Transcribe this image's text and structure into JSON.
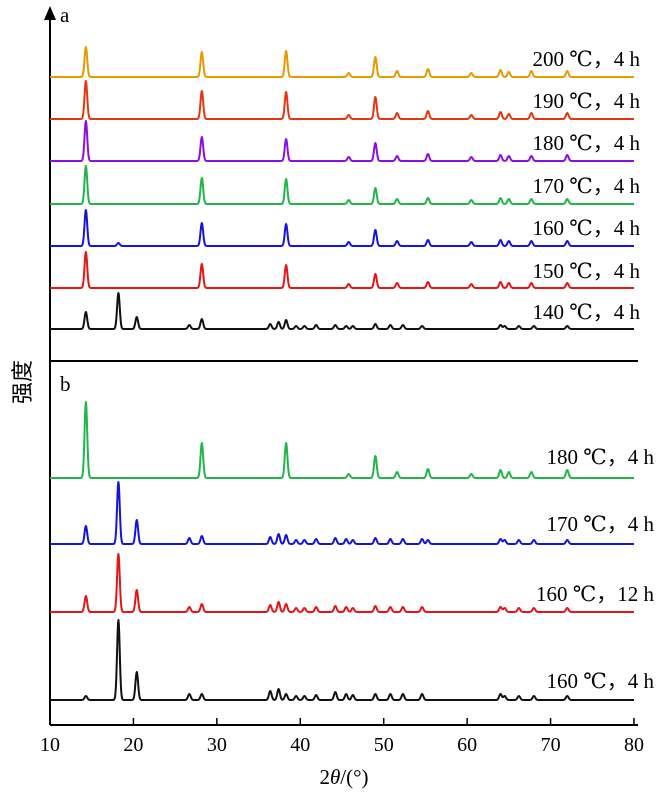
{
  "chart_data": {
    "type": "line",
    "shared_x_axis": {
      "label_prefix": "2",
      "label_var": "θ",
      "label_suffix": "/(°)",
      "ticks": [
        10,
        20,
        30,
        40,
        50,
        60,
        70,
        80
      ],
      "tick_labels": [
        "10",
        "20",
        "30",
        "40",
        "50",
        "60",
        "70",
        "80"
      ],
      "xlim": [
        10,
        80
      ]
    },
    "shared_y_label": "强度",
    "panels": [
      {
        "panel_label": "a",
        "series": [
          {
            "label": "200 ℃，4 h",
            "color": "#E69A00",
            "peaks": [
              [
                14.3,
                30
              ],
              [
                28.2,
                25
              ],
              [
                38.3,
                26
              ],
              [
                49.0,
                20
              ],
              [
                51.6,
                6
              ],
              [
                55.3,
                8
              ],
              [
                60.5,
                4
              ],
              [
                64.0,
                7
              ],
              [
                65.0,
                5
              ],
              [
                67.7,
                6
              ],
              [
                72.0,
                6
              ],
              [
                45.8,
                4
              ]
            ]
          },
          {
            "label": "190 ℃，4 h",
            "color": "#E8350E",
            "peaks": [
              [
                14.3,
                38
              ],
              [
                28.2,
                28
              ],
              [
                38.3,
                27
              ],
              [
                49.0,
                22
              ],
              [
                51.6,
                6
              ],
              [
                55.3,
                8
              ],
              [
                60.5,
                4
              ],
              [
                64.0,
                7
              ],
              [
                65.0,
                5
              ],
              [
                67.7,
                6
              ],
              [
                72.0,
                6
              ],
              [
                45.8,
                4
              ]
            ]
          },
          {
            "label": "180 ℃，4 h",
            "color": "#8B10E0",
            "peaks": [
              [
                14.3,
                40
              ],
              [
                28.2,
                24
              ],
              [
                38.3,
                22
              ],
              [
                49.0,
                18
              ],
              [
                51.6,
                5
              ],
              [
                55.3,
                7
              ],
              [
                60.5,
                4
              ],
              [
                64.0,
                6
              ],
              [
                65.0,
                5
              ],
              [
                67.7,
                5
              ],
              [
                72.0,
                6
              ],
              [
                45.8,
                4
              ]
            ]
          },
          {
            "label": "170 ℃，4 h",
            "color": "#21B54A",
            "peaks": [
              [
                14.3,
                38
              ],
              [
                28.2,
                26
              ],
              [
                38.3,
                25
              ],
              [
                49.0,
                16
              ],
              [
                51.6,
                5
              ],
              [
                55.3,
                6
              ],
              [
                60.5,
                4
              ],
              [
                64.0,
                6
              ],
              [
                65.0,
                5
              ],
              [
                67.7,
                5
              ],
              [
                72.0,
                5
              ],
              [
                45.8,
                4
              ]
            ]
          },
          {
            "label": "160 ℃，4 h",
            "color": "#1515D9",
            "peaks": [
              [
                14.3,
                36
              ],
              [
                18.2,
                3
              ],
              [
                28.2,
                23
              ],
              [
                38.3,
                22
              ],
              [
                49.0,
                16
              ],
              [
                51.6,
                5
              ],
              [
                55.3,
                6
              ],
              [
                60.5,
                4
              ],
              [
                64.0,
                6
              ],
              [
                65.0,
                5
              ],
              [
                67.7,
                5
              ],
              [
                72.0,
                5
              ],
              [
                45.8,
                4
              ]
            ]
          },
          {
            "label": "150 ℃，4 h",
            "color": "#E51515",
            "peaks": [
              [
                14.3,
                36
              ],
              [
                28.2,
                24
              ],
              [
                38.3,
                23
              ],
              [
                49.0,
                14
              ],
              [
                51.6,
                5
              ],
              [
                55.3,
                6
              ],
              [
                60.5,
                4
              ],
              [
                64.0,
                6
              ],
              [
                65.0,
                5
              ],
              [
                67.7,
                5
              ],
              [
                72.0,
                5
              ],
              [
                45.8,
                4
              ]
            ]
          },
          {
            "label": "140 ℃，4 h",
            "color": "#111111",
            "peaks": [
              [
                14.3,
                17
              ],
              [
                18.2,
                36
              ],
              [
                20.4,
                12
              ],
              [
                26.7,
                4
              ],
              [
                28.2,
                10
              ],
              [
                36.4,
                5
              ],
              [
                37.4,
                7
              ],
              [
                38.3,
                9
              ],
              [
                39.5,
                3
              ],
              [
                40.5,
                3
              ],
              [
                41.9,
                4
              ],
              [
                44.2,
                4
              ],
              [
                45.5,
                3
              ],
              [
                46.3,
                3
              ],
              [
                49.0,
                5
              ],
              [
                50.8,
                4
              ],
              [
                52.3,
                4
              ],
              [
                54.6,
                3
              ],
              [
                64.0,
                4
              ],
              [
                64.5,
                3
              ],
              [
                66.2,
                3
              ],
              [
                68.0,
                3
              ],
              [
                72.0,
                3
              ]
            ]
          }
        ]
      },
      {
        "panel_label": "b",
        "series": [
          {
            "label": "180 ℃，4 h",
            "color": "#21B54A",
            "peaks": [
              [
                14.3,
                76
              ],
              [
                28.2,
                35
              ],
              [
                38.3,
                35
              ],
              [
                49.0,
                22
              ],
              [
                51.6,
                6
              ],
              [
                55.3,
                9
              ],
              [
                60.5,
                4
              ],
              [
                64.0,
                8
              ],
              [
                65.0,
                6
              ],
              [
                67.7,
                6
              ],
              [
                72.0,
                8
              ],
              [
                45.8,
                4
              ]
            ]
          },
          {
            "label": "170 ℃，4 h",
            "color": "#1515D9",
            "peaks": [
              [
                14.3,
                18
              ],
              [
                18.2,
                62
              ],
              [
                20.4,
                24
              ],
              [
                26.7,
                6
              ],
              [
                28.2,
                8
              ],
              [
                36.4,
                7
              ],
              [
                37.4,
                10
              ],
              [
                38.3,
                9
              ],
              [
                39.5,
                4
              ],
              [
                40.5,
                4
              ],
              [
                41.9,
                5
              ],
              [
                44.2,
                6
              ],
              [
                45.5,
                5
              ],
              [
                46.3,
                4
              ],
              [
                49.0,
                6
              ],
              [
                50.8,
                5
              ],
              [
                52.3,
                5
              ],
              [
                54.6,
                5
              ],
              [
                55.3,
                4
              ],
              [
                64.0,
                5
              ],
              [
                64.5,
                4
              ],
              [
                66.2,
                4
              ],
              [
                68.0,
                4
              ],
              [
                72.0,
                4
              ]
            ]
          },
          {
            "label": "160 ℃，12 h",
            "color": "#E51515",
            "peaks": [
              [
                14.3,
                16
              ],
              [
                18.2,
                58
              ],
              [
                20.4,
                22
              ],
              [
                26.7,
                5
              ],
              [
                28.2,
                8
              ],
              [
                36.4,
                7
              ],
              [
                37.4,
                10
              ],
              [
                38.3,
                8
              ],
              [
                39.5,
                4
              ],
              [
                40.5,
                4
              ],
              [
                41.9,
                5
              ],
              [
                44.2,
                6
              ],
              [
                45.5,
                5
              ],
              [
                46.3,
                4
              ],
              [
                49.0,
                6
              ],
              [
                50.8,
                5
              ],
              [
                52.3,
                5
              ],
              [
                54.6,
                5
              ],
              [
                64.0,
                5
              ],
              [
                64.5,
                4
              ],
              [
                66.2,
                4
              ],
              [
                68.0,
                4
              ],
              [
                72.0,
                4
              ]
            ]
          },
          {
            "label": "160 ℃，4 h",
            "color": "#111111",
            "peaks": [
              [
                14.3,
                4
              ],
              [
                18.2,
                80
              ],
              [
                20.4,
                28
              ],
              [
                26.7,
                6
              ],
              [
                28.2,
                6
              ],
              [
                36.4,
                9
              ],
              [
                37.4,
                11
              ],
              [
                38.3,
                6
              ],
              [
                39.5,
                4
              ],
              [
                40.5,
                4
              ],
              [
                41.9,
                5
              ],
              [
                44.2,
                8
              ],
              [
                45.5,
                6
              ],
              [
                46.3,
                5
              ],
              [
                49.0,
                6
              ],
              [
                50.8,
                6
              ],
              [
                52.3,
                6
              ],
              [
                54.6,
                6
              ],
              [
                64.0,
                6
              ],
              [
                64.5,
                4
              ],
              [
                66.2,
                4
              ],
              [
                68.0,
                4
              ],
              [
                72.0,
                4
              ]
            ]
          }
        ]
      }
    ]
  }
}
